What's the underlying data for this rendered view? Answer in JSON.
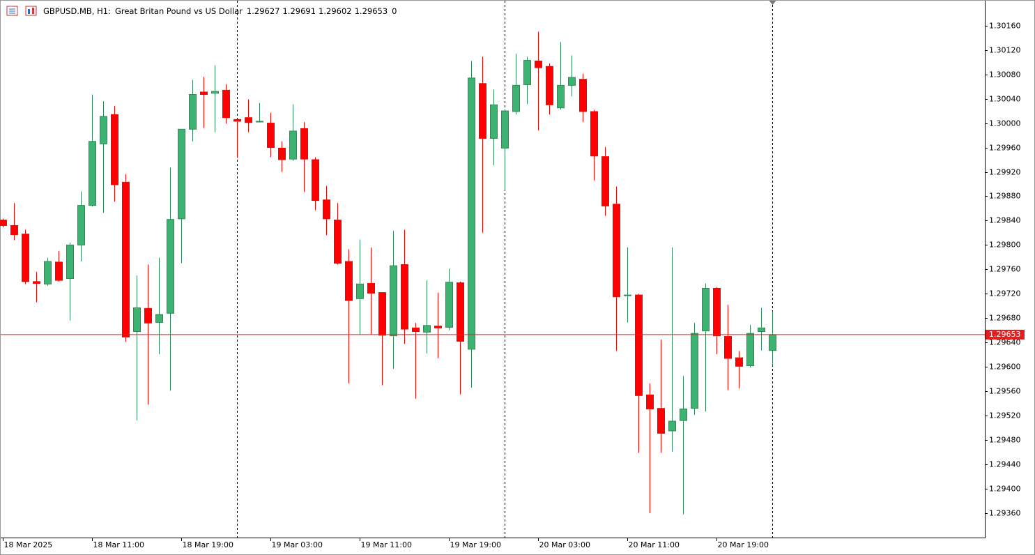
{
  "header": {
    "symbol": "GBPUSD.MB, H1:",
    "description": "Great Britan Pound vs US Dollar",
    "trailing": 0
  },
  "chart_data": {
    "type": "candlestick",
    "categories": [
      "18 Mar 2025",
      null,
      null,
      null,
      null,
      null,
      null,
      null,
      "18 Mar 11:00",
      null,
      null,
      null,
      null,
      null,
      null,
      null,
      "18 Mar 19:00",
      null,
      null,
      null,
      null,
      null,
      null,
      null,
      "19 Mar 03:00",
      null,
      null,
      null,
      null,
      null,
      null,
      null,
      "19 Mar 11:00",
      null,
      null,
      null,
      null,
      null,
      null,
      null,
      "19 Mar 19:00",
      null,
      null,
      null,
      null,
      null,
      null,
      null,
      "20 Mar 03:00",
      null,
      null,
      null,
      null,
      null,
      null,
      null,
      "20 Mar 11:00",
      null,
      null,
      null,
      null,
      null,
      null,
      null,
      "20 Mar 19:00",
      null,
      null,
      null,
      null,
      null
    ],
    "open": [
      1.29841,
      1.29832,
      1.29818,
      1.2974,
      1.29736,
      1.29772,
      1.29745,
      1.298,
      1.29865,
      1.29966,
      1.30014,
      1.29903,
      1.29658,
      1.29696,
      1.29673,
      1.29688,
      1.29843,
      1.2999,
      1.30051,
      1.30049,
      1.30054,
      1.30006,
      1.30009,
      1.30002,
      1.3,
      1.29959,
      1.29941,
      1.29991,
      1.2994,
      1.29874,
      1.29841,
      1.29773,
      1.29712,
      1.29737,
      1.29722,
      1.29651,
      1.29768,
      1.29664,
      1.29657,
      1.29667,
      1.29665,
      1.29738,
      1.29629,
      1.30065,
      1.29975,
      1.29959,
      1.30019,
      1.30063,
      1.30102,
      1.30093,
      1.30025,
      1.30062,
      1.30072,
      1.30019,
      1.29945,
      1.29867,
      1.29717,
      1.29718,
      1.29554,
      1.29532,
      1.29495,
      1.29512,
      1.29532,
      1.29659,
      1.29729,
      1.2965,
      1.29615,
      1.29602,
      1.29658,
      1.29627
    ],
    "high": [
      1.29843,
      1.29869,
      1.29825,
      1.29756,
      1.29779,
      1.2979,
      1.29804,
      1.29888,
      1.30047,
      1.30036,
      1.30028,
      1.29916,
      1.2975,
      1.29768,
      1.29779,
      1.29927,
      1.2999,
      1.30071,
      1.30076,
      1.30095,
      1.30064,
      1.30006,
      1.30039,
      1.30033,
      1.30017,
      1.2997,
      1.30031,
      1.30002,
      1.29944,
      1.29897,
      1.29869,
      1.29793,
      1.29809,
      1.29796,
      1.29722,
      1.29823,
      1.29825,
      1.29672,
      1.29742,
      1.29722,
      1.29761,
      1.2974,
      1.30102,
      1.30109,
      1.30055,
      1.30023,
      1.30114,
      1.30109,
      1.3015,
      1.30098,
      1.30133,
      1.30111,
      1.30081,
      1.30022,
      1.29961,
      1.29896,
      1.29796,
      1.2972,
      1.29573,
      1.29645,
      1.29796,
      1.29585,
      1.29672,
      1.29737,
      1.29731,
      1.29702,
      1.29626,
      1.29669,
      1.29697,
      1.29691
    ],
    "low": [
      1.29829,
      1.29808,
      1.29736,
      1.29706,
      1.29733,
      1.2974,
      1.29676,
      1.29773,
      1.29863,
      1.29853,
      1.29871,
      1.29641,
      1.29512,
      1.29538,
      1.29621,
      1.29561,
      1.2977,
      1.2997,
      1.29992,
      1.29985,
      1.29999,
      1.29943,
      1.29985,
      1.30001,
      1.29944,
      1.2992,
      1.29938,
      1.29887,
      1.29857,
      1.29816,
      1.29768,
      1.29573,
      1.29653,
      1.29653,
      1.2957,
      1.29597,
      1.29638,
      1.29548,
      1.29622,
      1.29614,
      1.2966,
      1.29555,
      1.29566,
      1.2982,
      1.29931,
      1.2989,
      1.30014,
      1.30031,
      1.29988,
      1.30014,
      1.30022,
      1.30044,
      1.30002,
      1.29906,
      1.29848,
      1.29626,
      1.29673,
      1.29459,
      1.2936,
      1.29459,
      1.29461,
      1.29358,
      1.29521,
      1.29527,
      1.29621,
      1.29562,
      1.29565,
      1.29599,
      1.29627,
      1.29602
    ],
    "close": [
      1.29832,
      1.29817,
      1.2974,
      1.29737,
      1.29773,
      1.29742,
      1.298,
      1.29865,
      1.2997,
      1.30011,
      1.29899,
      1.29649,
      1.29697,
      1.29672,
      1.29686,
      1.29842,
      1.2999,
      1.30047,
      1.30047,
      1.30052,
      1.30009,
      1.30003,
      1.30001,
      1.30003,
      1.2996,
      1.2994,
      1.29987,
      1.29941,
      1.29873,
      1.29843,
      1.2977,
      1.29709,
      1.29736,
      1.29721,
      1.29652,
      1.29766,
      1.29662,
      1.29658,
      1.29668,
      1.29664,
      1.29739,
      1.29642,
      1.30074,
      1.29975,
      1.3003,
      1.3002,
      1.30062,
      1.30103,
      1.30091,
      1.3003,
      1.30062,
      1.30075,
      1.30019,
      1.29946,
      1.29864,
      1.29715,
      1.29718,
      1.29553,
      1.29531,
      1.29491,
      1.29511,
      1.29531,
      1.29655,
      1.29729,
      1.29651,
      1.29614,
      1.29601,
      1.29655,
      1.29664,
      1.29653
    ],
    "up_color": "#3cb371",
    "down_color": "#ff0000",
    "price_line_color": "#e02020",
    "ylim": [
      1.2932,
      1.30202
    ],
    "yticks": [
      {
        "value": 1.3016,
        "label": "1.30160"
      },
      {
        "value": 1.3012,
        "label": "1.30120"
      },
      {
        "value": 1.3008,
        "label": "1.30080"
      },
      {
        "value": 1.3004,
        "label": "1.30040"
      },
      {
        "value": 1.3,
        "label": "1.30000"
      },
      {
        "value": 1.2996,
        "label": "1.29960"
      },
      {
        "value": 1.2992,
        "label": "1.29920"
      },
      {
        "value": 1.2988,
        "label": "1.29880"
      },
      {
        "value": 1.2984,
        "label": "1.29840"
      },
      {
        "value": 1.298,
        "label": "1.29800"
      },
      {
        "value": 1.2976,
        "label": "1.29760"
      },
      {
        "value": 1.2972,
        "label": "1.29720"
      },
      {
        "value": 1.2968,
        "label": "1.29680"
      },
      {
        "value": 1.2964,
        "label": "1.29640"
      },
      {
        "value": 1.296,
        "label": "1.29600"
      },
      {
        "value": 1.2956,
        "label": "1.29560"
      },
      {
        "value": 1.2952,
        "label": "1.29520"
      },
      {
        "value": 1.2948,
        "label": "1.29480"
      },
      {
        "value": 1.2944,
        "label": "1.29440"
      },
      {
        "value": 1.294,
        "label": "1.29400"
      },
      {
        "value": 1.2936,
        "label": "1.29360"
      }
    ]
  }
}
